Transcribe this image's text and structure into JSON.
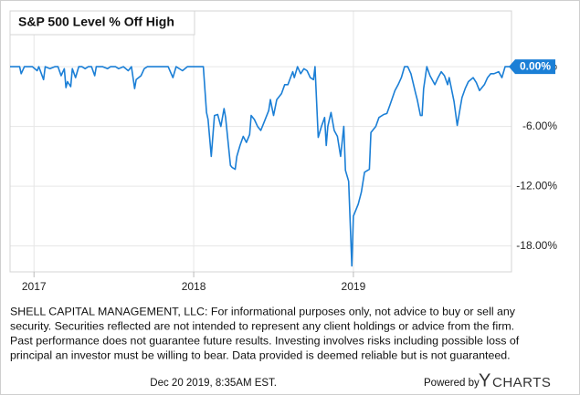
{
  "chart_data": {
    "type": "line",
    "title": "S&P 500 Level % Off High",
    "color": "#1b7fd6",
    "grid": true,
    "xlim": [
      2016.85,
      2019.99
    ],
    "xticks": [
      2017,
      2018,
      2019
    ],
    "ylim": [
      -20.6,
      5.6
    ],
    "yticks": [
      {
        "value": 0,
        "label": "0.00%"
      },
      {
        "value": -6,
        "label": "-6.00%"
      },
      {
        "value": -12,
        "label": "-12.00%"
      },
      {
        "value": -18,
        "label": "-18.00%"
      }
    ],
    "current_value": {
      "value": 0,
      "label": "0.00%"
    },
    "x": [
      2016.85,
      2016.91,
      2016.92,
      2016.94,
      2016.99,
      2017.02,
      2017.03,
      2017.06,
      2017.07,
      2017.1,
      2017.13,
      2017.15,
      2017.17,
      2017.19,
      2017.2,
      2017.21,
      2017.23,
      2017.24,
      2017.26,
      2017.28,
      2017.3,
      2017.32,
      2017.34,
      2017.36,
      2017.38,
      2017.39,
      2017.43,
      2017.46,
      2017.48,
      2017.51,
      2017.53,
      2017.56,
      2017.59,
      2017.61,
      2017.63,
      2017.64,
      2017.67,
      2017.69,
      2017.71,
      2017.84,
      2017.87,
      2017.89,
      2017.93,
      2017.96,
      2018.06,
      2018.08,
      2018.09,
      2018.11,
      2018.13,
      2018.15,
      2018.17,
      2018.19,
      2018.2,
      2018.23,
      2018.24,
      2018.26,
      2018.27,
      2018.29,
      2018.31,
      2018.33,
      2018.35,
      2018.36,
      2018.38,
      2018.4,
      2018.42,
      2018.44,
      2018.47,
      2018.48,
      2018.5,
      2018.52,
      2018.55,
      2018.57,
      2018.59,
      2018.62,
      2018.63,
      2018.65,
      2018.67,
      2018.69,
      2018.71,
      2018.73,
      2018.75,
      2018.76,
      2018.78,
      2018.8,
      2018.82,
      2018.83,
      2018.84,
      2018.86,
      2018.88,
      2018.9,
      2018.92,
      2018.94,
      2018.95,
      2018.97,
      2018.99,
      2019.0,
      2019.03,
      2019.05,
      2019.07,
      2019.1,
      2019.11,
      2019.14,
      2019.16,
      2019.19,
      2019.21,
      2019.23,
      2019.26,
      2019.28,
      2019.3,
      2019.32,
      2019.34,
      2019.36,
      2019.39,
      2019.4,
      2019.42,
      2019.43,
      2019.44,
      2019.46,
      2019.48,
      2019.51,
      2019.53,
      2019.55,
      2019.57,
      2019.59,
      2019.6,
      2019.63,
      2019.65,
      2019.67,
      2019.68,
      2019.7,
      2019.72,
      2019.75,
      2019.77,
      2019.79,
      2019.82,
      2019.84,
      2019.86,
      2019.88,
      2019.91,
      2019.93,
      2019.95,
      2019.98
    ],
    "values": [
      0,
      0,
      -0.7,
      0,
      0,
      -0.4,
      0,
      -1.3,
      0,
      -0.2,
      0,
      0,
      -0.9,
      -0.2,
      -2.1,
      -1.5,
      -2.0,
      -0.2,
      -1.1,
      0,
      0,
      -0.2,
      0,
      0,
      -0.9,
      0,
      0,
      -0.2,
      0,
      0,
      -0.2,
      0,
      -0.4,
      0,
      -2.2,
      -1.3,
      -0.9,
      -0.2,
      0,
      0,
      -1.1,
      0,
      -0.4,
      0,
      0,
      -4.6,
      -5.3,
      -9.0,
      -4.9,
      -4.8,
      -6.0,
      -4.2,
      -5.1,
      -9.9,
      -10.1,
      -10.3,
      -9.0,
      -7.9,
      -7.0,
      -7.6,
      -6.8,
      -4.9,
      -5.3,
      -6.0,
      -6.4,
      -5.6,
      -4.4,
      -3.3,
      -4.9,
      -3.3,
      -2.7,
      -1.8,
      -1.8,
      -0.5,
      -1.1,
      0,
      -0.7,
      -0.2,
      -0.4,
      -1.1,
      -1.3,
      0,
      -7.1,
      -6.0,
      -5.1,
      -7.9,
      -6.0,
      -4.6,
      -6.4,
      -7.0,
      -9.0,
      -6.0,
      -10.4,
      -11.5,
      -20.0,
      -15.0,
      -13.8,
      -12.6,
      -10.6,
      -10.3,
      -6.6,
      -6.0,
      -5.1,
      -4.8,
      -4.7,
      -3.8,
      -2.4,
      -1.8,
      -1.1,
      0,
      0,
      -0.7,
      -2.7,
      -3.3,
      -4.9,
      -4.9,
      -2.2,
      0,
      -0.9,
      -1.8,
      -1.1,
      -0.5,
      -0.9,
      -1.8,
      -1.1,
      -3.5,
      -5.9,
      -4.0,
      -3.1,
      -2.2,
      -1.5,
      -1.1,
      -1.6,
      -2.4,
      -1.8,
      -1.1,
      -0.7,
      -0.7,
      -0.5,
      -1.1,
      0,
      0
    ]
  },
  "footer": {
    "disclaimer": [
      "SHELL CAPITAL MANAGEMENT, LLC: For informational purposes only, not advice to buy or sell any",
      "security. Securities reflected are not intended to represent any client holdings or advice from the firm.",
      "Past performance does not guarantee future results. Investing involves risks including possible loss of",
      "principal an investor must be willing to bear. Data provided is deemed reliable but is not guaranteed."
    ],
    "timestamp": "Dec 20 2019, 8:35AM EST.",
    "powered_by": "Powered by",
    "brand_initial": "Y",
    "brand_rest": "CHARTS"
  }
}
